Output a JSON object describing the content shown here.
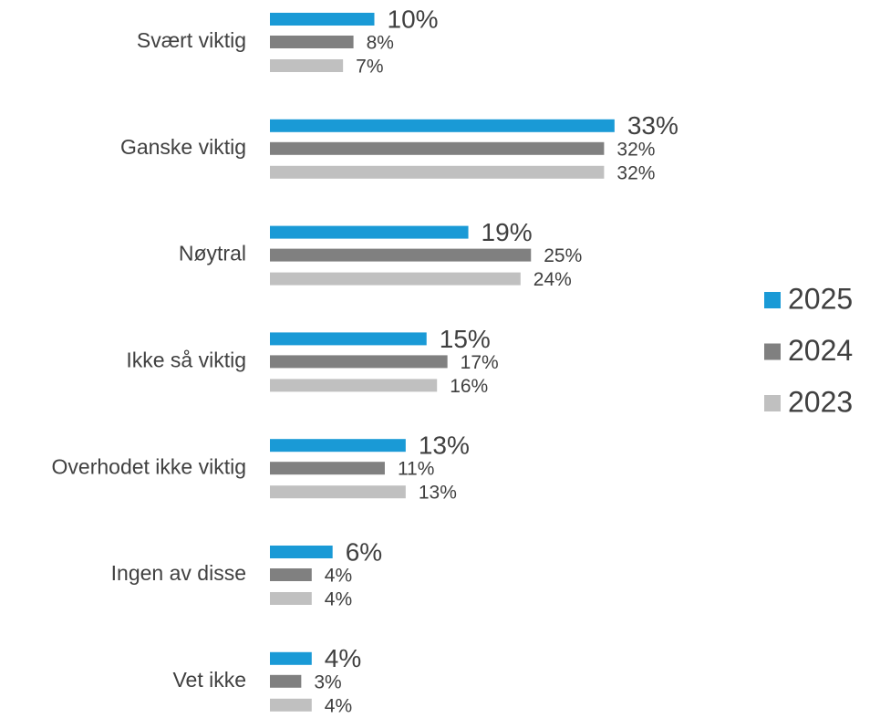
{
  "chart_data": {
    "type": "bar",
    "orientation": "horizontal",
    "categories": [
      "Svært viktig",
      "Ganske viktig",
      "Nøytral",
      "Ikke så viktig",
      "Overhodet ikke viktig",
      "Ingen av disse",
      "Vet ikke"
    ],
    "series": [
      {
        "name": "2025",
        "color": "#1a9ad6",
        "values": [
          10,
          33,
          19,
          15,
          13,
          6,
          4
        ],
        "value_labels": [
          "10%",
          "33%",
          "19%",
          "15%",
          "13%",
          "6%",
          "4%"
        ]
      },
      {
        "name": "2024",
        "color": "#808080",
        "values": [
          8,
          32,
          25,
          17,
          11,
          4,
          3
        ],
        "value_labels": [
          "8%",
          "32%",
          "25%",
          "17%",
          "11%",
          "4%",
          "3%"
        ]
      },
      {
        "name": "2023",
        "color": "#c0c0c0",
        "values": [
          7,
          32,
          24,
          16,
          13,
          4,
          4
        ],
        "value_labels": [
          "7%",
          "32%",
          "24%",
          "16%",
          "13%",
          "4%",
          "4%"
        ]
      }
    ]
  }
}
